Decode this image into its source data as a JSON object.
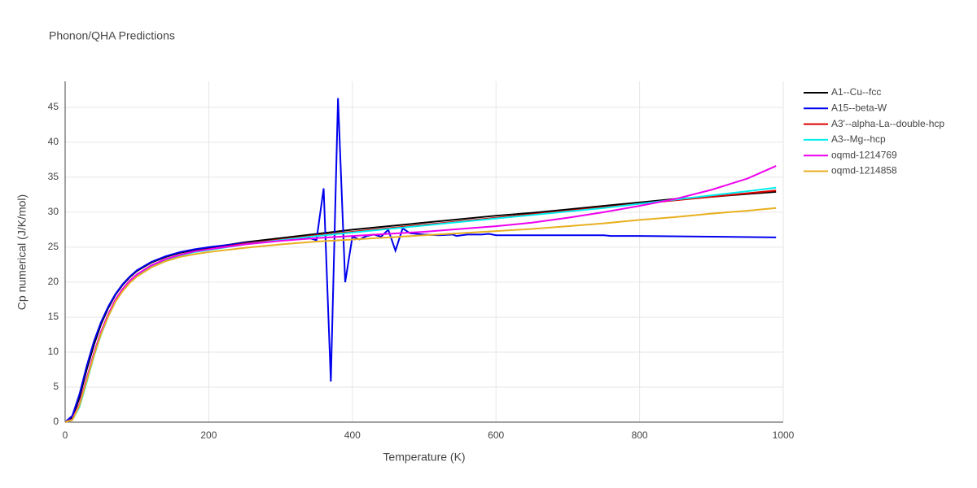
{
  "chart_data": {
    "type": "line",
    "title": "Phonon/QHA Predictions",
    "x_label": "Temperature (K)",
    "y_label": "Cp numerical (J/K/mol)",
    "xlim": [
      0,
      1000
    ],
    "ylim": [
      0,
      48.7
    ],
    "xticks": [
      0,
      200,
      400,
      600,
      800,
      1000
    ],
    "yticks": [
      0,
      5,
      10,
      15,
      20,
      25,
      30,
      35,
      40,
      45
    ],
    "grid": true,
    "legend": "right",
    "series": [
      {
        "name": "A1--Cu--fcc",
        "color": "#000000",
        "x": [
          0,
          10,
          20,
          30,
          40,
          50,
          60,
          70,
          80,
          90,
          100,
          120,
          140,
          160,
          180,
          200,
          250,
          300,
          350,
          400,
          450,
          500,
          550,
          600,
          650,
          700,
          750,
          800,
          850,
          900,
          950,
          990
        ],
        "values": [
          0,
          0.6,
          3.5,
          7.5,
          11,
          14,
          16.3,
          18.2,
          19.6,
          20.7,
          21.6,
          22.8,
          23.6,
          24.2,
          24.6,
          24.9,
          25.7,
          26.3,
          26.9,
          27.5,
          28,
          28.5,
          29,
          29.5,
          29.9,
          30.4,
          30.9,
          31.4,
          31.9,
          32.2,
          32.6,
          32.9
        ]
      },
      {
        "name": "A15--beta-W",
        "color": "#0000ee",
        "x": [
          0,
          10,
          20,
          30,
          40,
          50,
          60,
          70,
          80,
          90,
          100,
          120,
          140,
          160,
          180,
          200,
          250,
          300,
          340,
          350,
          360,
          370,
          380,
          390,
          400,
          410,
          420,
          430,
          440,
          450,
          460,
          470,
          480,
          500,
          520,
          540,
          545,
          560,
          580,
          590,
          600,
          700,
          750,
          760,
          800,
          900,
          990
        ],
        "values": [
          0,
          0.9,
          4,
          8,
          11.5,
          14.3,
          16.5,
          18.3,
          19.7,
          20.8,
          21.7,
          22.9,
          23.7,
          24.3,
          24.7,
          25,
          25.6,
          26,
          26.3,
          26,
          33.4,
          5.8,
          46.3,
          20,
          26.5,
          26.1,
          26.6,
          26.8,
          26.5,
          27.5,
          24.5,
          27.7,
          27,
          26.8,
          26.7,
          26.8,
          26.6,
          26.8,
          26.8,
          26.9,
          26.7,
          26.7,
          26.7,
          26.6,
          26.6,
          26.5,
          26.4
        ]
      },
      {
        "name": "A3'--alpha-La--double-hcp",
        "color": "#dd0000",
        "x": [
          0,
          10,
          20,
          30,
          40,
          50,
          60,
          70,
          80,
          90,
          100,
          120,
          140,
          160,
          180,
          200,
          250,
          300,
          350,
          400,
          450,
          500,
          550,
          600,
          650,
          700,
          750,
          800,
          850,
          900,
          950,
          990
        ],
        "values": [
          0,
          0.4,
          2.6,
          6.2,
          9.8,
          12.9,
          15.4,
          17.5,
          19,
          20.2,
          21.1,
          22.4,
          23.3,
          23.9,
          24.4,
          24.7,
          25.5,
          26.1,
          26.7,
          27.2,
          27.7,
          28.2,
          28.7,
          29.2,
          29.7,
          30.2,
          30.7,
          31.2,
          31.7,
          32.2,
          32.7,
          33.1
        ]
      },
      {
        "name": "A3--Mg--hcp",
        "color": "#00eeee",
        "x": [
          0,
          10,
          20,
          30,
          40,
          50,
          60,
          70,
          80,
          90,
          100,
          120,
          140,
          160,
          180,
          200,
          250,
          300,
          350,
          400,
          450,
          500,
          550,
          600,
          650,
          700,
          750,
          800,
          850,
          900,
          950,
          990
        ],
        "values": [
          0,
          0.3,
          2.2,
          5.7,
          9.4,
          12.5,
          15.1,
          17.2,
          18.8,
          20,
          21,
          22.3,
          23.2,
          23.8,
          24.3,
          24.6,
          25.4,
          26,
          26.6,
          27.1,
          27.6,
          28.1,
          28.6,
          29.1,
          29.6,
          30.1,
          30.6,
          31.2,
          31.8,
          32.4,
          33,
          33.5
        ]
      },
      {
        "name": "oqmd-1214769",
        "color": "#ee00ee",
        "x": [
          0,
          10,
          20,
          30,
          40,
          50,
          60,
          70,
          80,
          90,
          100,
          120,
          140,
          160,
          180,
          200,
          250,
          300,
          350,
          400,
          450,
          500,
          550,
          600,
          650,
          700,
          750,
          800,
          850,
          900,
          950,
          990
        ],
        "values": [
          0,
          0.4,
          2.6,
          6.2,
          9.8,
          12.9,
          15.4,
          17.5,
          19,
          20.2,
          21.1,
          22.4,
          23.3,
          23.9,
          24.4,
          24.7,
          25.4,
          25.9,
          26.3,
          26.6,
          26.9,
          27.2,
          27.6,
          28,
          28.5,
          29.2,
          30,
          30.9,
          31.9,
          33.2,
          34.8,
          36.6
        ]
      },
      {
        "name": "oqmd-1214858",
        "color": "#e8b020",
        "x": [
          0,
          10,
          20,
          30,
          40,
          50,
          60,
          70,
          80,
          90,
          100,
          120,
          140,
          160,
          180,
          200,
          250,
          300,
          350,
          400,
          450,
          500,
          550,
          600,
          650,
          700,
          750,
          800,
          850,
          900,
          950,
          990
        ],
        "values": [
          0,
          0.3,
          2.4,
          5.9,
          9.5,
          12.6,
          15.1,
          17.2,
          18.7,
          19.9,
          20.8,
          22.1,
          23,
          23.6,
          24,
          24.3,
          24.9,
          25.4,
          25.8,
          26.1,
          26.4,
          26.7,
          27,
          27.3,
          27.6,
          28,
          28.4,
          28.9,
          29.3,
          29.8,
          30.2,
          30.6
        ]
      }
    ]
  }
}
